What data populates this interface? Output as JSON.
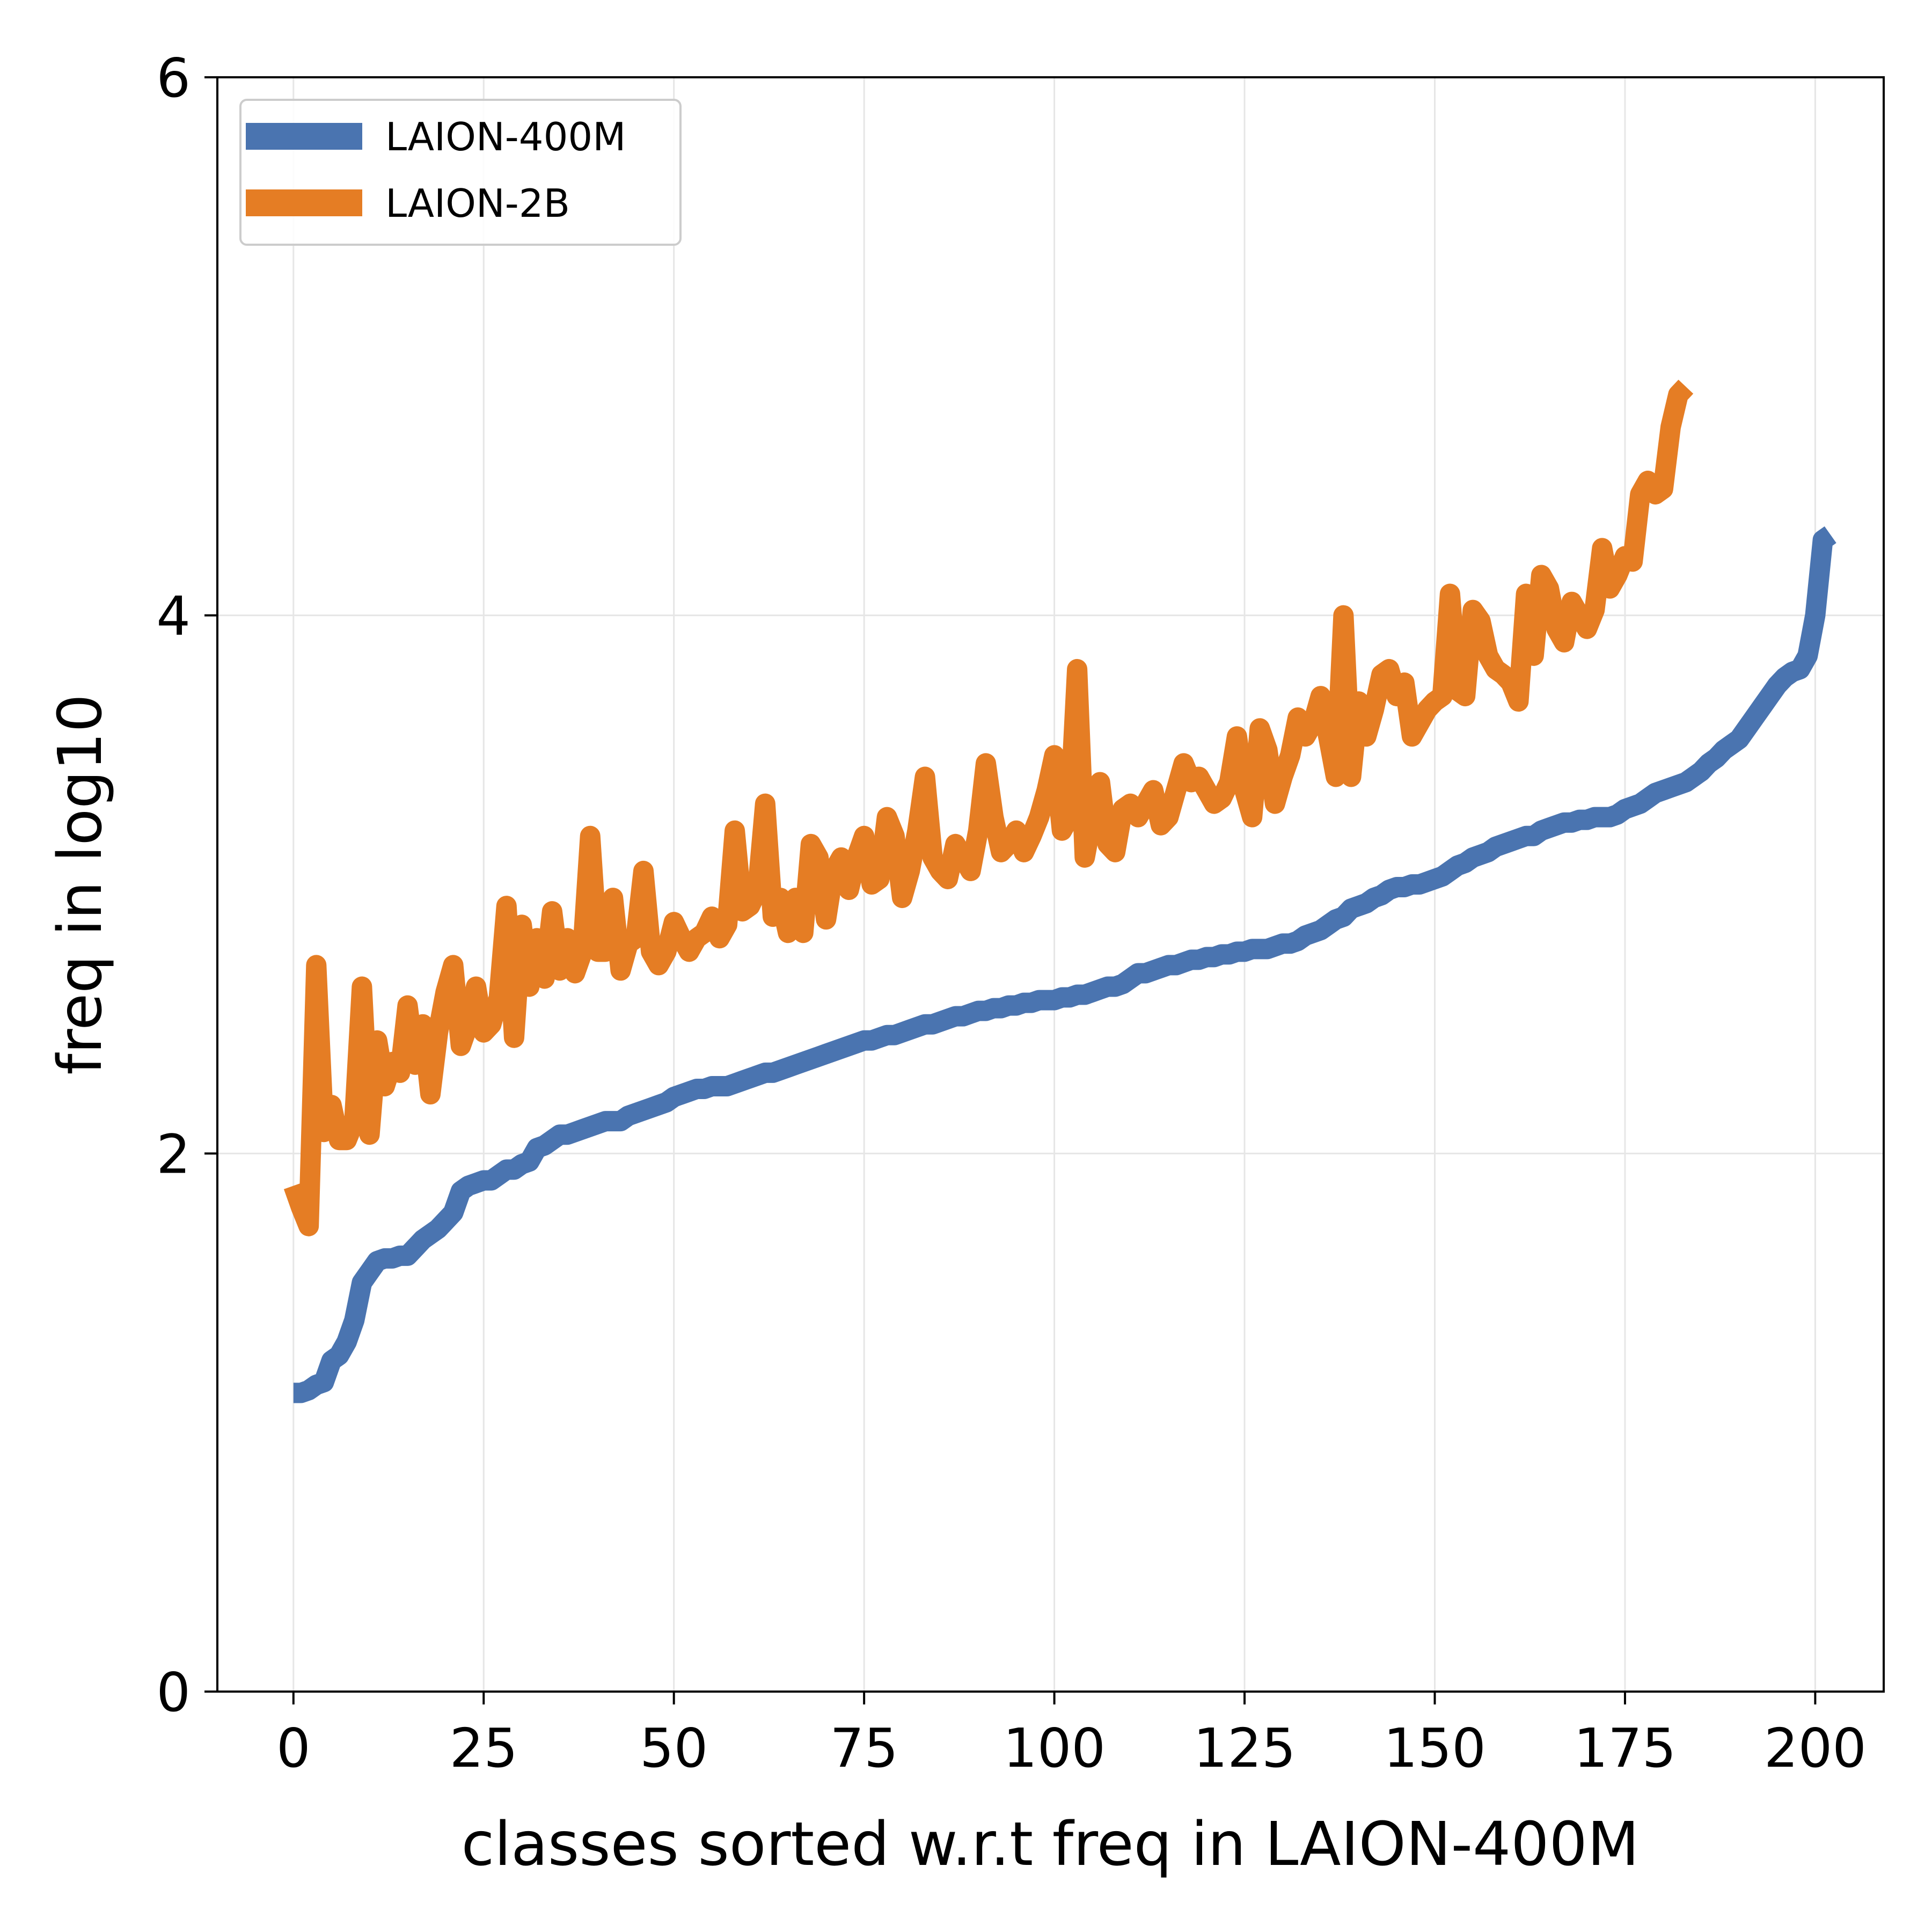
{
  "chart_data": {
    "type": "line",
    "title": "",
    "xlabel": "classes sorted w.r.t freq in LAION-400M",
    "ylabel": "freq in log10",
    "xlim": [
      -10,
      209
    ],
    "ylim": [
      0,
      6
    ],
    "xticks": [
      0,
      25,
      50,
      75,
      100,
      125,
      150,
      175,
      200
    ],
    "yticks": [
      0,
      2,
      4,
      6
    ],
    "grid": true,
    "legend_position": "top-left",
    "series": [
      {
        "name": "LAION-400M",
        "color": "#4a74b0",
        "y": [
          1.11,
          1.11,
          1.12,
          1.14,
          1.15,
          1.23,
          1.25,
          1.3,
          1.38,
          1.52,
          1.56,
          1.6,
          1.61,
          1.61,
          1.62,
          1.62,
          1.65,
          1.68,
          1.7,
          1.72,
          1.75,
          1.78,
          1.86,
          1.88,
          1.89,
          1.9,
          1.9,
          1.92,
          1.94,
          1.94,
          1.96,
          1.97,
          2.02,
          2.03,
          2.05,
          2.07,
          2.07,
          2.08,
          2.09,
          2.1,
          2.11,
          2.12,
          2.12,
          2.12,
          2.14,
          2.15,
          2.16,
          2.17,
          2.18,
          2.19,
          2.21,
          2.22,
          2.23,
          2.24,
          2.24,
          2.25,
          2.25,
          2.25,
          2.26,
          2.27,
          2.28,
          2.29,
          2.3,
          2.3,
          2.31,
          2.32,
          2.33,
          2.34,
          2.35,
          2.36,
          2.37,
          2.38,
          2.39,
          2.4,
          2.41,
          2.42,
          2.42,
          2.43,
          2.44,
          2.44,
          2.45,
          2.46,
          2.47,
          2.48,
          2.48,
          2.49,
          2.5,
          2.51,
          2.51,
          2.52,
          2.53,
          2.53,
          2.54,
          2.54,
          2.55,
          2.55,
          2.56,
          2.56,
          2.57,
          2.57,
          2.57,
          2.58,
          2.58,
          2.59,
          2.59,
          2.6,
          2.61,
          2.62,
          2.62,
          2.63,
          2.65,
          2.67,
          2.67,
          2.68,
          2.69,
          2.7,
          2.7,
          2.71,
          2.72,
          2.72,
          2.73,
          2.73,
          2.74,
          2.74,
          2.75,
          2.75,
          2.76,
          2.76,
          2.76,
          2.77,
          2.78,
          2.78,
          2.79,
          2.81,
          2.82,
          2.83,
          2.85,
          2.87,
          2.88,
          2.91,
          2.92,
          2.93,
          2.95,
          2.96,
          2.98,
          2.99,
          2.99,
          3.0,
          3.0,
          3.01,
          3.02,
          3.03,
          3.05,
          3.07,
          3.08,
          3.1,
          3.11,
          3.12,
          3.14,
          3.15,
          3.16,
          3.17,
          3.18,
          3.18,
          3.2,
          3.21,
          3.22,
          3.23,
          3.23,
          3.24,
          3.24,
          3.25,
          3.25,
          3.25,
          3.26,
          3.28,
          3.29,
          3.3,
          3.32,
          3.34,
          3.35,
          3.36,
          3.37,
          3.38,
          3.4,
          3.42,
          3.45,
          3.47,
          3.5,
          3.52,
          3.54,
          3.58,
          3.62,
          3.66,
          3.7,
          3.74,
          3.77,
          3.79,
          3.8,
          3.85,
          4.0,
          4.28,
          4.3
        ]
      },
      {
        "name": "LAION-2B",
        "color": "#e57d24",
        "y": [
          1.88,
          1.8,
          1.73,
          2.7,
          2.08,
          2.18,
          2.05,
          2.05,
          2.12,
          2.62,
          2.07,
          2.42,
          2.25,
          2.34,
          2.3,
          2.55,
          2.33,
          2.48,
          2.22,
          2.45,
          2.6,
          2.7,
          2.4,
          2.48,
          2.62,
          2.45,
          2.48,
          2.58,
          2.92,
          2.43,
          2.85,
          2.62,
          2.8,
          2.65,
          2.9,
          2.68,
          2.8,
          2.67,
          2.75,
          3.18,
          2.75,
          2.75,
          2.95,
          2.68,
          2.78,
          2.8,
          3.05,
          2.75,
          2.7,
          2.75,
          2.86,
          2.8,
          2.75,
          2.8,
          2.82,
          2.88,
          2.8,
          2.85,
          3.2,
          2.9,
          2.92,
          2.98,
          3.3,
          2.88,
          2.95,
          2.82,
          2.95,
          2.82,
          3.15,
          3.1,
          2.87,
          3.05,
          3.1,
          2.98,
          3.1,
          3.18,
          3.0,
          3.02,
          3.25,
          3.18,
          2.95,
          3.05,
          3.2,
          3.4,
          3.1,
          3.05,
          3.02,
          3.15,
          3.1,
          3.05,
          3.2,
          3.45,
          3.25,
          3.12,
          3.15,
          3.2,
          3.12,
          3.18,
          3.25,
          3.35,
          3.48,
          3.2,
          3.25,
          3.8,
          3.1,
          3.25,
          3.38,
          3.15,
          3.12,
          3.28,
          3.3,
          3.25,
          3.3,
          3.35,
          3.22,
          3.25,
          3.35,
          3.45,
          3.38,
          3.4,
          3.35,
          3.3,
          3.32,
          3.38,
          3.55,
          3.35,
          3.25,
          3.58,
          3.5,
          3.3,
          3.4,
          3.48,
          3.62,
          3.55,
          3.6,
          3.7,
          3.55,
          3.4,
          4.0,
          3.4,
          3.68,
          3.55,
          3.65,
          3.78,
          3.8,
          3.7,
          3.75,
          3.55,
          3.6,
          3.65,
          3.68,
          3.7,
          4.08,
          3.72,
          3.7,
          4.02,
          3.98,
          3.85,
          3.8,
          3.78,
          3.75,
          3.68,
          4.08,
          3.85,
          4.15,
          4.1,
          3.95,
          3.9,
          4.05,
          4.0,
          3.95,
          4.02,
          4.25,
          4.1,
          4.15,
          4.22,
          4.2,
          4.45,
          4.5,
          4.45,
          4.47,
          4.7,
          4.82,
          4.85
        ]
      }
    ]
  }
}
